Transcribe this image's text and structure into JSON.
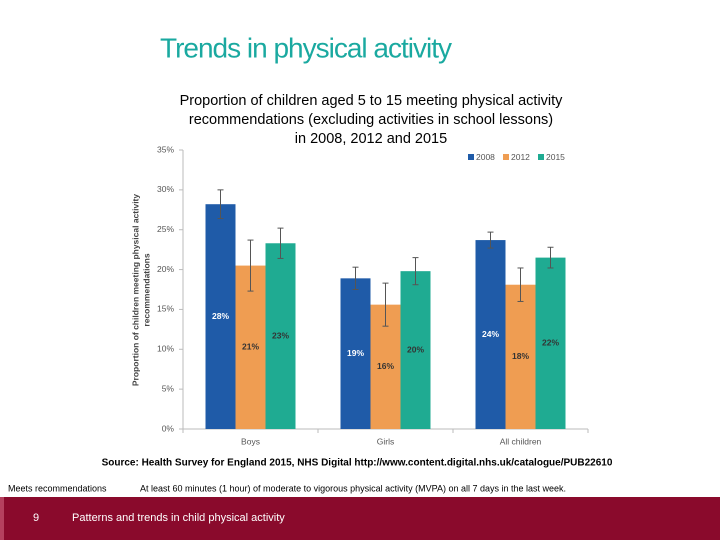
{
  "slide": {
    "title": "Trends in physical activity",
    "source": "Source: Health Survey for England 2015, NHS Digital http://www.content.digital.nhs.uk/catalogue/PUB22610",
    "definition_term": "Meets recommendations",
    "definition_text": "At least 60 minutes (1 hour) of moderate to vigorous physical activity (MVPA) on all 7 days in the last week.",
    "page_number": "9",
    "footer": "Patterns and trends in child physical activity"
  },
  "chart_data": {
    "type": "bar",
    "title_lines": [
      "Proportion of children aged 5 to 15 meeting physical activity",
      "recommendations (excluding activities in school lessons)",
      "in 2008, 2012 and 2015"
    ],
    "ylabel_lines": [
      "Proportion of children meeting physical activity",
      "recommendations"
    ],
    "categories": [
      "Boys",
      "Girls",
      "All children"
    ],
    "series": [
      {
        "name": "2008",
        "color": "#1f5ba8",
        "values": [
          28.2,
          18.9,
          23.7
        ],
        "value_labels": [
          "28%",
          "19%",
          "24%"
        ],
        "errors": [
          1.8,
          1.4,
          1.0
        ]
      },
      {
        "name": "2012",
        "color": "#ef9d52",
        "values": [
          20.5,
          15.6,
          18.1
        ],
        "value_labels": [
          "21%",
          "16%",
          "18%"
        ],
        "errors": [
          3.2,
          2.7,
          2.1
        ]
      },
      {
        "name": "2015",
        "color": "#1fab92",
        "values": [
          23.3,
          19.8,
          21.5
        ],
        "value_labels": [
          "23%",
          "20%",
          "22%"
        ],
        "errors": [
          1.9,
          1.7,
          1.3
        ]
      }
    ],
    "ylim": [
      0,
      35
    ],
    "yticks": [
      {
        "value": 0,
        "label": "0%"
      },
      {
        "value": 5,
        "label": "5%"
      },
      {
        "value": 10,
        "label": "10%"
      },
      {
        "value": 15,
        "label": "15%"
      },
      {
        "value": 20,
        "label": "20%"
      },
      {
        "value": 25,
        "label": "25%"
      },
      {
        "value": 30,
        "label": "30%"
      },
      {
        "value": 35,
        "label": "35%"
      }
    ],
    "grid": false,
    "legend": "top-right"
  }
}
